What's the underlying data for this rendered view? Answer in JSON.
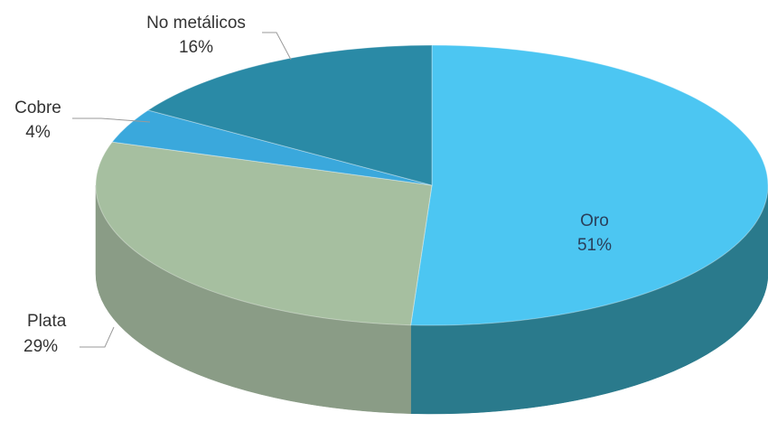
{
  "chart_data": {
    "type": "pie",
    "style": "3d",
    "categories": [
      "Oro",
      "Plata",
      "Cobre",
      "No metálicos"
    ],
    "values": [
      51,
      29,
      4,
      16
    ],
    "labels": [
      "51%",
      "29%",
      "4%",
      "16%"
    ],
    "colors": [
      "#4cc6f2",
      "#a6bfa0",
      "#3aa8dc",
      "#2a8aa6"
    ],
    "side_colors": [
      "#2a7a8c",
      "#8a9c86",
      "#2c86b0",
      "#216c80"
    ],
    "label_placement": {
      "Oro": "inside",
      "Plata": "outside-left",
      "Cobre": "outside-left",
      "No metálicos": "outside-top"
    }
  }
}
